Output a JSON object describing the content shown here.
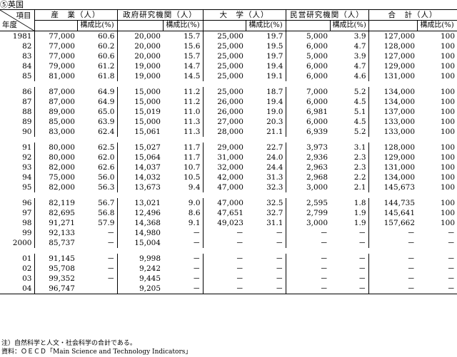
{
  "title": "⑤英国",
  "header": {
    "corner_item": "項目",
    "corner_year": "年度",
    "groups": [
      "産　業（人）",
      "政府研究機関（人）",
      "大　学（人）",
      "民営研究機関（人）",
      "合　計（人）"
    ],
    "ratio_label": "構成比(%)"
  },
  "rows": [
    {
      "year": "1981",
      "cells": [
        "77,000",
        "60.6",
        "20,000",
        "15.7",
        "25,000",
        "19.7",
        "5,000",
        "3.9",
        "127,000",
        "100"
      ]
    },
    {
      "year": "82",
      "cells": [
        "77,000",
        "60.2",
        "20,000",
        "15.6",
        "25,000",
        "19.5",
        "6,000",
        "4.7",
        "128,000",
        "100"
      ]
    },
    {
      "year": "83",
      "cells": [
        "77,000",
        "60.6",
        "20,000",
        "15.7",
        "25,000",
        "19.7",
        "5,000",
        "3.9",
        "127,000",
        "100"
      ]
    },
    {
      "year": "84",
      "cells": [
        "79,000",
        "61.2",
        "19,000",
        "14.7",
        "25,000",
        "19.4",
        "6,000",
        "4.7",
        "129,000",
        "100"
      ]
    },
    {
      "year": "85",
      "cells": [
        "81,000",
        "61.8",
        "19,000",
        "14.5",
        "25,000",
        "19.1",
        "6,000",
        "4.6",
        "131,000",
        "100"
      ]
    },
    {
      "gap": true
    },
    {
      "year": "86",
      "cells": [
        "87,000",
        "64.9",
        "15,000",
        "11.2",
        "25,000",
        "18.7",
        "7,000",
        "5.2",
        "134,000",
        "100"
      ]
    },
    {
      "year": "87",
      "cells": [
        "87,000",
        "64.9",
        "15,000",
        "11.2",
        "26,000",
        "19.4",
        "6,000",
        "4.5",
        "134,000",
        "100"
      ]
    },
    {
      "year": "88",
      "cells": [
        "89,000",
        "65.0",
        "15,019",
        "11.0",
        "26,000",
        "19.0",
        "6,981",
        "5.1",
        "137,000",
        "100"
      ]
    },
    {
      "year": "89",
      "cells": [
        "85,000",
        "63.9",
        "15,000",
        "11.3",
        "27,000",
        "20.3",
        "6,000",
        "4.5",
        "133,000",
        "100"
      ]
    },
    {
      "year": "90",
      "cells": [
        "83,000",
        "62.4",
        "15,061",
        "11.3",
        "28,000",
        "21.1",
        "6,939",
        "5.2",
        "133,000",
        "100"
      ]
    },
    {
      "gap": true
    },
    {
      "year": "91",
      "cells": [
        "80,000",
        "62.5",
        "15,027",
        "11.7",
        "29,000",
        "22.7",
        "3,973",
        "3.1",
        "128,000",
        "100"
      ]
    },
    {
      "year": "92",
      "cells": [
        "80,000",
        "62.0",
        "15,064",
        "11.7",
        "31,000",
        "24.0",
        "2,936",
        "2.3",
        "129,000",
        "100"
      ]
    },
    {
      "year": "93",
      "cells": [
        "82,000",
        "62.6",
        "14,037",
        "10.7",
        "32,000",
        "24.4",
        "2,963",
        "2.3",
        "131,000",
        "100"
      ]
    },
    {
      "year": "94",
      "cells": [
        "75,000",
        "56.0",
        "14,032",
        "10.5",
        "42,000",
        "31.3",
        "2,968",
        "2.2",
        "134,000",
        "100"
      ]
    },
    {
      "year": "95",
      "cells": [
        "82,000",
        "56.3",
        "13,673",
        "9.4",
        "47,000",
        "32.3",
        "3,000",
        "2.1",
        "145,673",
        "100"
      ]
    },
    {
      "gap": true
    },
    {
      "year": "96",
      "cells": [
        "82,119",
        "56.7",
        "13,021",
        "9.0",
        "47,000",
        "32.5",
        "2,595",
        "1.8",
        "144,735",
        "100"
      ]
    },
    {
      "year": "97",
      "cells": [
        "82,695",
        "56.8",
        "12,496",
        "8.6",
        "47,651",
        "32.7",
        "2,799",
        "1.9",
        "145,641",
        "100"
      ]
    },
    {
      "year": "98",
      "cells": [
        "91,271",
        "57.9",
        "14,368",
        "9.1",
        "49,023",
        "31.1",
        "3,000",
        "1.9",
        "157,662",
        "100"
      ]
    },
    {
      "year": "99",
      "cells": [
        "92,133",
        "－",
        "14,980",
        "－",
        "－",
        "－",
        "－",
        "－",
        "－",
        "－"
      ]
    },
    {
      "year": "2000",
      "cells": [
        "85,737",
        "－",
        "15,004",
        "－",
        "－",
        "－",
        "－",
        "－",
        "－",
        "－"
      ]
    },
    {
      "gap": true
    },
    {
      "year": "01",
      "cells": [
        "91,145",
        "－",
        "9,998",
        "－",
        "－",
        "－",
        "－",
        "－",
        "－",
        "－"
      ]
    },
    {
      "year": "02",
      "cells": [
        "95,708",
        "－",
        "9,242",
        "－",
        "－",
        "－",
        "－",
        "－",
        "－",
        "－"
      ]
    },
    {
      "year": "03",
      "cells": [
        "99,352",
        "－",
        "9,445",
        "－",
        "－",
        "－",
        "－",
        "－",
        "－",
        "－"
      ]
    },
    {
      "year": "04",
      "cells": [
        "96,747",
        "",
        "9,205",
        "－",
        "－",
        "－",
        "－",
        "－",
        "－",
        "－"
      ]
    }
  ],
  "notes": [
    "注）自然科学と人文・社会科学の合計である。",
    "資料：ＯＥＣＤ「Main Science and Technology Indicators」"
  ]
}
